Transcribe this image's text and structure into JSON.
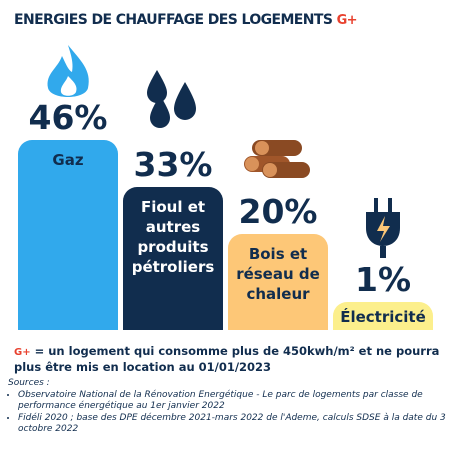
{
  "chart_data": {
    "type": "bar",
    "title": "ENERGIES DE CHAUFFAGE DES LOGEMENTS",
    "badge": "G+",
    "categories": [
      "Gaz",
      "Fioul et autres produits pétroliers",
      "Bois et réseau de chaleur",
      "Électricité"
    ],
    "values": [
      46,
      33,
      20,
      1
    ],
    "value_labels": [
      "46%",
      "33%",
      "20%",
      "1%"
    ],
    "colors": [
      "#31a9ec",
      "#112d4e",
      "#fdc777",
      "#fcef8c"
    ],
    "label_colors": [
      "#112d4e",
      "#ffffff",
      "#112d4e",
      "#112d4e"
    ]
  },
  "footnote": {
    "badge": "G+",
    "text": "= un logement qui consomme plus de 450kwh/m² et ne pourra plus être mis en location au 01/01/2023"
  },
  "sources": {
    "title": "Sources :",
    "items": [
      "Observatoire National de la Rénovation Energétique - Le parc de logements par classe de performance énergétique au 1er janvier 2022",
      "Fidéli 2020 ; base des DPE décembre 2021-mars 2022 de l'Ademe, calculs SDSE à la date du 3 octobre 2022"
    ]
  }
}
